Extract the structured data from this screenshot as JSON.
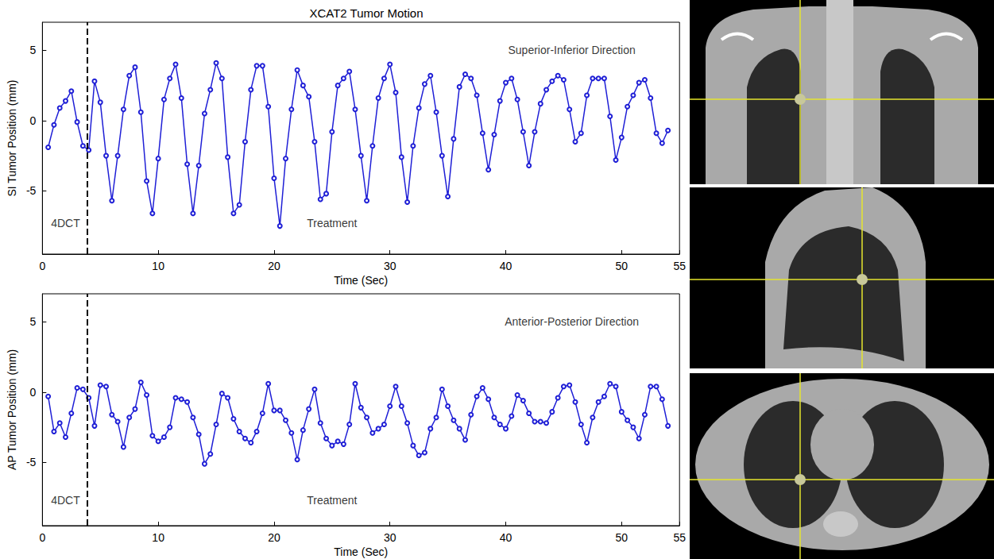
{
  "chart_data": [
    {
      "type": "line",
      "title": "XCAT2 Tumor Motion",
      "xlabel": "Time (Sec)",
      "ylabel": "SI Tumor Position (mm)",
      "x": [
        0.5,
        1,
        1.5,
        2,
        2.5,
        3,
        3.5,
        4,
        4.5,
        5,
        5.5,
        6,
        6.5,
        7,
        7.5,
        8,
        8.5,
        9,
        9.5,
        10,
        10.5,
        11,
        11.5,
        12,
        12.5,
        13,
        13.5,
        14,
        14.5,
        15,
        15.5,
        16,
        16.5,
        17,
        17.5,
        18,
        18.5,
        19,
        19.5,
        20,
        20.5,
        21,
        21.5,
        22,
        22.5,
        23,
        23.5,
        24,
        24.5,
        25,
        25.5,
        26,
        26.5,
        27,
        27.5,
        28,
        28.5,
        29,
        29.5,
        30,
        30.5,
        31,
        31.5,
        32,
        32.5,
        33,
        33.5,
        34,
        34.5,
        35,
        35.5,
        36,
        36.5,
        37,
        37.5,
        38,
        38.5,
        39,
        39.5,
        40,
        40.5,
        41,
        41.5,
        42,
        42.5,
        43,
        43.5,
        44,
        44.5,
        45,
        45.5,
        46,
        46.5,
        47,
        47.5,
        48,
        48.5,
        49,
        49.5,
        50,
        50.5,
        51,
        51.5,
        52,
        52.5,
        53,
        53.5,
        54
      ],
      "values": [
        -1.9,
        -0.3,
        0.9,
        1.4,
        2.1,
        -0.1,
        -1.8,
        -2.1,
        2.8,
        1.3,
        -2.5,
        -5.7,
        -2.5,
        0.8,
        3.2,
        3.8,
        0.6,
        -4.3,
        -6.6,
        -2.7,
        1.5,
        3.0,
        4.0,
        1.6,
        -3.1,
        -6.6,
        -3.2,
        0.5,
        2.2,
        4.1,
        3.0,
        -2.6,
        -6.6,
        -6.0,
        -1.5,
        2.2,
        3.9,
        3.9,
        1.0,
        -4.1,
        -7.5,
        -2.7,
        0.8,
        3.6,
        2.5,
        1.7,
        -1.5,
        -5.6,
        -5.2,
        -0.8,
        2.5,
        3.0,
        3.5,
        0.8,
        -2.5,
        -5.7,
        -1.8,
        1.6,
        3.0,
        4.0,
        2.0,
        -2.6,
        -5.8,
        -1.8,
        0.9,
        2.6,
        3.2,
        0.6,
        -2.5,
        -5.4,
        -1.3,
        2.4,
        3.3,
        3.0,
        1.8,
        -0.9,
        -3.5,
        -1.0,
        1.4,
        2.7,
        3.0,
        1.5,
        -0.8,
        -3.2,
        -0.8,
        1.2,
        2.2,
        2.8,
        3.2,
        2.9,
        0.8,
        -1.5,
        -0.9,
        1.8,
        3.0,
        3.0,
        3.0,
        0.3,
        -2.8,
        -1.2,
        1.0,
        1.8,
        2.7,
        2.9,
        1.6,
        -0.9,
        -1.6,
        -0.7
      ],
      "color": "#1f1fd6",
      "marker": "circle",
      "line_style": "solid",
      "xlim": [
        0,
        55
      ],
      "ylim": [
        -9.5,
        7
      ],
      "xticks": [
        0,
        10,
        20,
        30,
        40,
        50
      ],
      "yticks": [
        -5,
        0,
        5
      ],
      "grid": false,
      "vline": 3.9,
      "annotations": [
        {
          "text": "Superior-Inferior Direction",
          "x": 45.7,
          "y": 5
        },
        {
          "text": "4DCT",
          "x": 2,
          "y": -7.3
        },
        {
          "text": "Treatment",
          "x": 25,
          "y": -7.3
        }
      ]
    },
    {
      "type": "line",
      "xlabel": "Time (Sec)",
      "ylabel": "AP Tumor Position (mm)",
      "x": [
        0.5,
        1,
        1.5,
        2,
        2.5,
        3,
        3.5,
        4,
        4.5,
        5,
        5.5,
        6,
        6.5,
        7,
        7.5,
        8,
        8.5,
        9,
        9.5,
        10,
        10.5,
        11,
        11.5,
        12,
        12.5,
        13,
        13.5,
        14,
        14.5,
        15,
        15.5,
        16,
        16.5,
        17,
        17.5,
        18,
        18.5,
        19,
        19.5,
        20,
        20.5,
        21,
        21.5,
        22,
        22.5,
        23,
        23.5,
        24,
        24.5,
        25,
        25.5,
        26,
        26.5,
        27,
        27.5,
        28,
        28.5,
        29,
        29.5,
        30,
        30.5,
        31,
        31.5,
        32,
        32.5,
        33,
        33.5,
        34,
        34.5,
        35,
        35.5,
        36,
        36.5,
        37,
        37.5,
        38,
        38.5,
        39,
        39.5,
        40,
        40.5,
        41,
        41.5,
        42,
        42.5,
        43,
        43.5,
        44,
        44.5,
        45,
        45.5,
        46,
        46.5,
        47,
        47.5,
        48,
        48.5,
        49,
        49.5,
        50,
        50.5,
        51,
        51.5,
        52,
        52.5,
        53,
        53.5,
        54
      ],
      "values": [
        -0.3,
        -2.8,
        -2.2,
        -3.2,
        -1.5,
        0.3,
        0.2,
        -0.4,
        -2.4,
        0.5,
        0.4,
        -1.6,
        -2.1,
        -3.9,
        -1.8,
        -1.2,
        0.7,
        -0.2,
        -3.1,
        -3.5,
        -3.2,
        -2.5,
        -0.4,
        -0.5,
        -0.7,
        -1.8,
        -3.0,
        -5.1,
        -4.4,
        -2.3,
        -0.1,
        -0.4,
        -1.9,
        -2.8,
        -3.3,
        -3.6,
        -2.8,
        -1.5,
        0.6,
        -1.3,
        -1.3,
        -2.0,
        -2.9,
        -4.8,
        -2.7,
        -1.2,
        0.2,
        -2.2,
        -3.3,
        -3.8,
        -3.5,
        -3.7,
        -2.3,
        0.6,
        -1.1,
        -1.8,
        -2.9,
        -2.6,
        -2.3,
        -1.0,
        0.4,
        -1.0,
        -2.2,
        -3.8,
        -4.5,
        -4.3,
        -2.6,
        -1.8,
        0.2,
        -1.0,
        -2.0,
        -2.6,
        -3.4,
        -1.6,
        -0.3,
        0.3,
        -0.5,
        -1.8,
        -2.3,
        -2.6,
        -1.7,
        -0.2,
        -0.6,
        -1.5,
        -2.1,
        -2.1,
        -2.2,
        -1.4,
        -0.4,
        0.4,
        0.5,
        -0.7,
        -2.3,
        -3.6,
        -1.8,
        -0.7,
        -0.3,
        0.6,
        0.4,
        -1.4,
        -2.0,
        -2.5,
        -3.3,
        -1.6,
        0.4,
        0.4,
        -0.5,
        -2.4
      ],
      "color": "#1f1fd6",
      "marker": "circle",
      "line_style": "solid",
      "xlim": [
        0,
        55
      ],
      "ylim": [
        -9.5,
        7
      ],
      "xticks": [
        0,
        10,
        20,
        30,
        40,
        50
      ],
      "yticks": [
        -5,
        0,
        5
      ],
      "grid": false,
      "vline": 3.9,
      "annotations": [
        {
          "text": "Anterior-Posterior Direction",
          "x": 45.7,
          "y": 5
        },
        {
          "text": "4DCT",
          "x": 2,
          "y": -7.7
        },
        {
          "text": "Treatment",
          "x": 25,
          "y": -7.7
        }
      ]
    }
  ]
}
